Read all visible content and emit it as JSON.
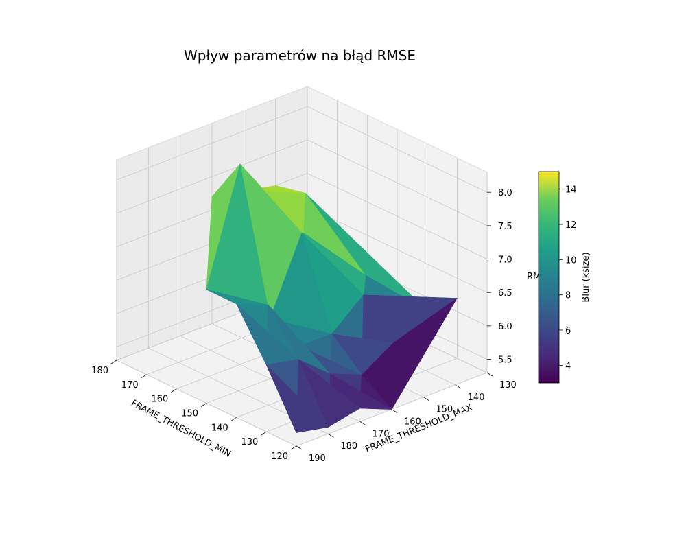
{
  "chart_data": {
    "type": "surface3d",
    "title": "Wpływ parametrów na błąd RMSE",
    "xlabel": "FRAME_THRESHOLD_MIN",
    "ylabel": "FRAME_THRESHOLD_MAX",
    "zlabel": "RMSE",
    "colorbar_label": "Blur (ksize)",
    "x_ticks": [
      120,
      130,
      140,
      150,
      160,
      170,
      180
    ],
    "y_ticks": [
      130,
      140,
      150,
      160,
      170,
      180,
      190
    ],
    "z_ticks": [
      5.5,
      6.0,
      6.5,
      7.0,
      7.5,
      8.0
    ],
    "colorbar_ticks": [
      4,
      6,
      8,
      10,
      12,
      14
    ],
    "xlim": [
      120,
      180
    ],
    "ylim": [
      130,
      190
    ],
    "zlim": [
      5.3,
      8.3
    ],
    "colorbar_range": [
      3,
      15
    ],
    "colormap": "viridis",
    "surface_points": [
      {
        "x": 180,
        "y": 130,
        "z": 6.4,
        "blur": 11
      },
      {
        "x": 180,
        "y": 140,
        "z": 7.0,
        "blur": 13
      },
      {
        "x": 180,
        "y": 150,
        "z": 7.1,
        "blur": 13
      },
      {
        "x": 180,
        "y": 160,
        "z": 7.2,
        "blur": 14
      },
      {
        "x": 170,
        "y": 140,
        "z": 7.1,
        "blur": 14
      },
      {
        "x": 170,
        "y": 160,
        "z": 7.0,
        "blur": 13
      },
      {
        "x": 160,
        "y": 150,
        "z": 6.9,
        "blur": 12
      },
      {
        "x": 160,
        "y": 170,
        "z": 8.3,
        "blur": 15
      },
      {
        "x": 150,
        "y": 140,
        "z": 6.3,
        "blur": 11
      },
      {
        "x": 150,
        "y": 160,
        "z": 7.3,
        "blur": 12
      },
      {
        "x": 150,
        "y": 170,
        "z": 6.2,
        "blur": 9
      },
      {
        "x": 140,
        "y": 150,
        "z": 6.4,
        "blur": 8
      },
      {
        "x": 140,
        "y": 160,
        "z": 6.0,
        "blur": 9
      },
      {
        "x": 140,
        "y": 170,
        "z": 6.0,
        "blur": 7
      },
      {
        "x": 130,
        "y": 150,
        "z": 5.9,
        "blur": 3
      },
      {
        "x": 130,
        "y": 160,
        "z": 5.6,
        "blur": 5
      },
      {
        "x": 130,
        "y": 170,
        "z": 5.8,
        "blur": 6
      },
      {
        "x": 120,
        "y": 160,
        "z": 5.3,
        "blur": 3
      },
      {
        "x": 120,
        "y": 170,
        "z": 5.5,
        "blur": 4
      },
      {
        "x": 120,
        "y": 180,
        "z": 5.4,
        "blur": 3
      },
      {
        "x": 140,
        "y": 180,
        "z": 6.8,
        "blur": 10
      },
      {
        "x": 130,
        "y": 180,
        "z": 6.2,
        "blur": 7
      },
      {
        "x": 130,
        "y": 190,
        "z": 6.3,
        "blur": 7
      },
      {
        "x": 120,
        "y": 190,
        "z": 5.5,
        "blur": 5
      },
      {
        "x": 140,
        "y": 190,
        "z": 7.0,
        "blur": 9
      },
      {
        "x": 150,
        "y": 190,
        "z": 7.0,
        "blur": 8
      },
      {
        "x": 140,
        "y": 130,
        "z": 5.8,
        "blur": 6
      },
      {
        "x": 130,
        "y": 130,
        "z": 6.2,
        "blur": 5
      }
    ]
  }
}
